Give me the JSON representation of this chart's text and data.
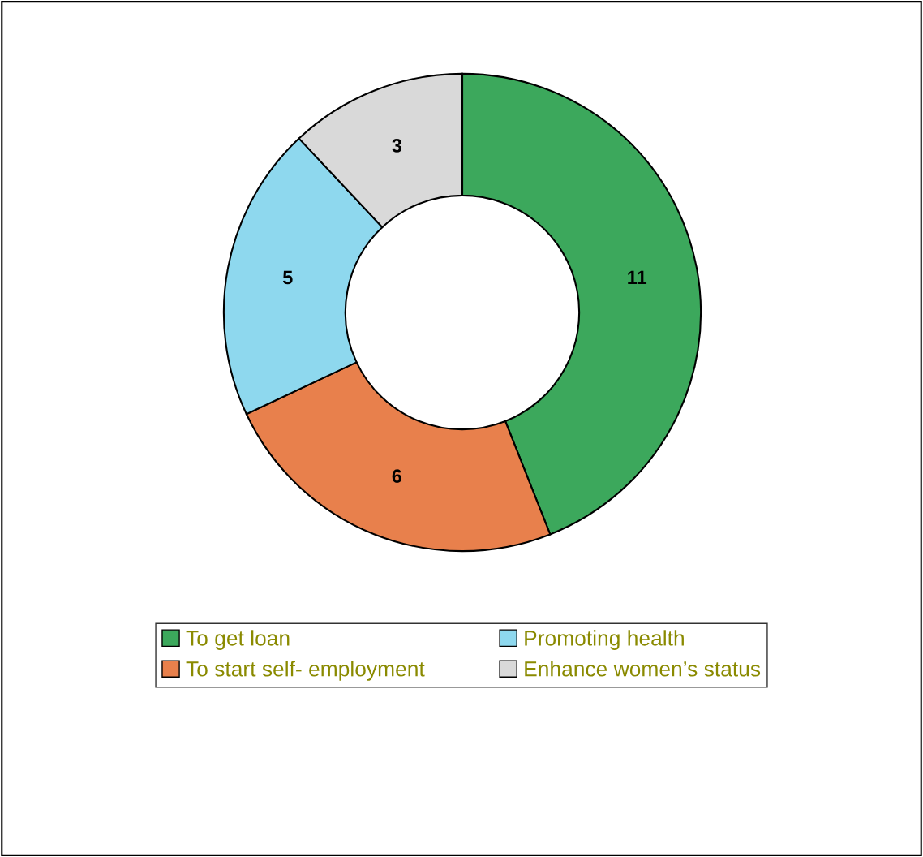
{
  "chart_data": {
    "type": "donut",
    "categories": [
      "To get loan",
      "To start self- employment",
      "Promoting health",
      "Enhance women’s status"
    ],
    "values": [
      11,
      6,
      5,
      3
    ],
    "colors": [
      "#3ca85c",
      "#e8804c",
      "#8ed8ee",
      "#d9d9d9"
    ],
    "data_labels": true,
    "legend": "bottom"
  }
}
